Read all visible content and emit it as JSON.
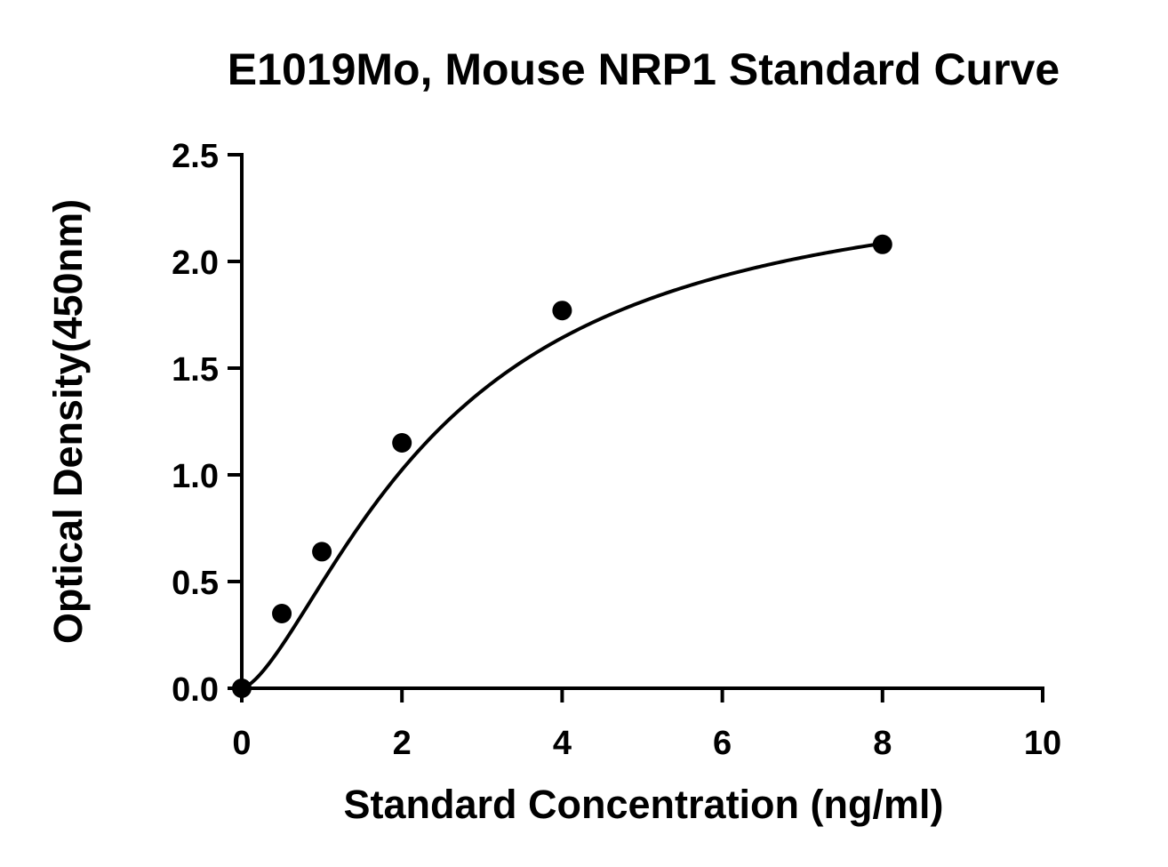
{
  "chart_data": {
    "type": "scatter",
    "title": "E1019Mo, Mouse NRP1 Standard Curve",
    "xlabel": "Standard Concentration (ng/ml)",
    "ylabel": "Optical Density(450nm)",
    "xlim": [
      0,
      10
    ],
    "ylim": [
      0,
      2.5
    ],
    "x_ticks": [
      0,
      2,
      4,
      6,
      8,
      10
    ],
    "x_tick_labels": [
      "0",
      "2",
      "4",
      "6",
      "8",
      "10"
    ],
    "y_ticks": [
      0,
      0.5,
      1.0,
      1.5,
      2.0,
      2.5
    ],
    "y_tick_labels": [
      "0.0",
      "0.5",
      "1.0",
      "1.5",
      "2.0",
      "2.5"
    ],
    "grid": false,
    "series": [
      {
        "points": [
          {
            "x": 0,
            "y": 0.0
          },
          {
            "x": 0.5,
            "y": 0.35
          },
          {
            "x": 1,
            "y": 0.64
          },
          {
            "x": 2,
            "y": 1.15
          },
          {
            "x": 4,
            "y": 1.77
          },
          {
            "x": 8,
            "y": 2.08
          }
        ],
        "fit": "4PL",
        "fit_params": {
          "bottom": 0.0,
          "top": 2.44,
          "ec50": 2.48,
          "hill": 1.51
        },
        "color": "#000000"
      }
    ]
  }
}
